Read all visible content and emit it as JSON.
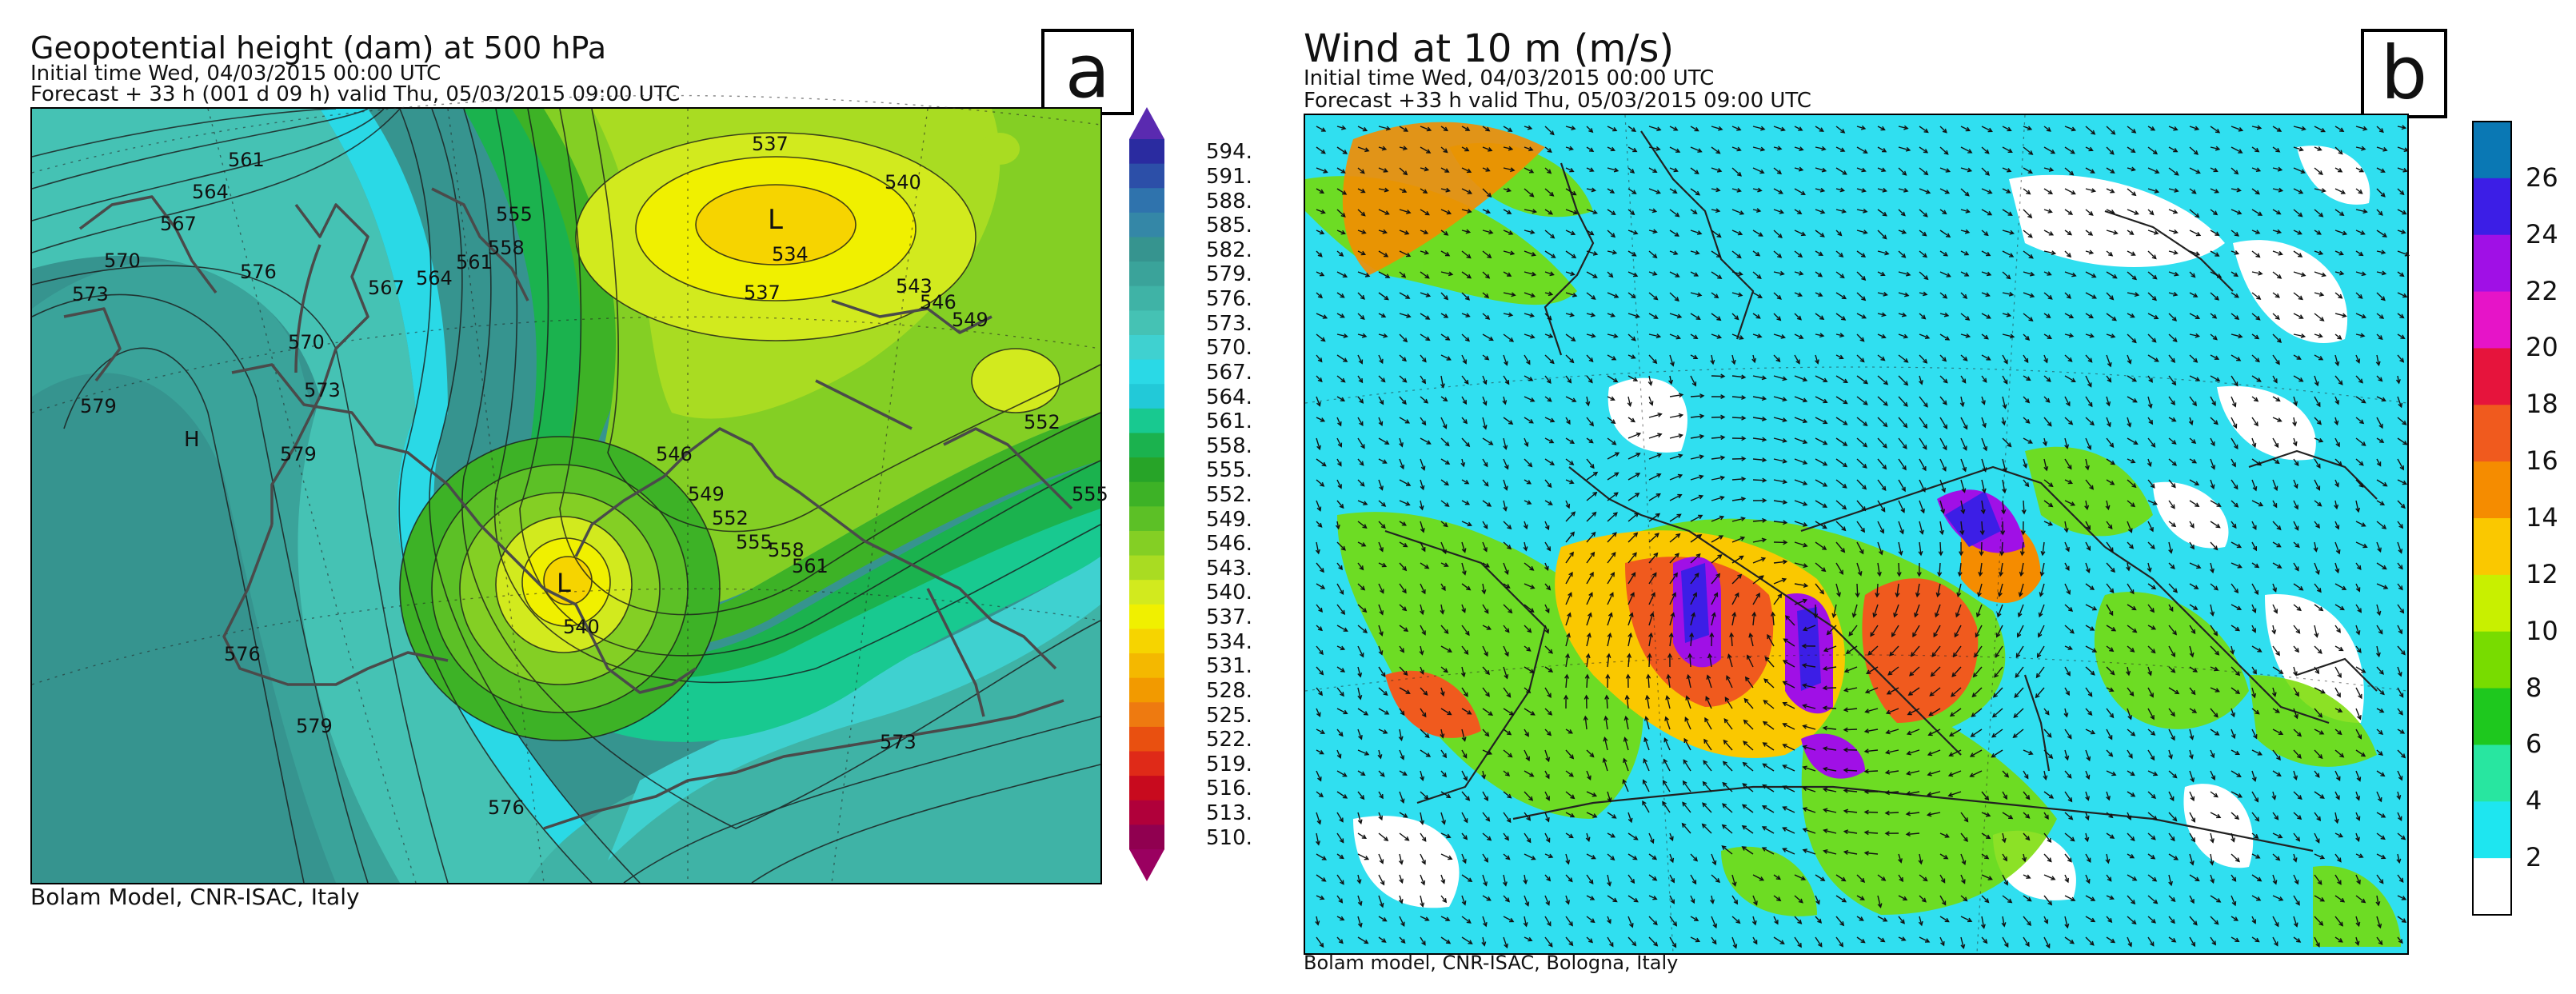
{
  "panel_a": {
    "title": "Geopotential height (dam) at 500 hPa",
    "initial_time": "Initial time  Wed, 04/03/2015  00:00 UTC",
    "forecast": "Forecast  +  33 h  (001 d 09 h)  valid Thu, 05/03/2015 09:00 UTC",
    "letter": "a",
    "credit": "Bolam Model, CNR-ISAC, Italy",
    "colorbar_labels": [
      "594.",
      "591.",
      "588.",
      "585.",
      "582.",
      "579.",
      "576.",
      "573.",
      "570.",
      "567.",
      "564.",
      "561.",
      "558.",
      "555.",
      "552.",
      "549.",
      "546.",
      "543.",
      "540.",
      "537.",
      "534.",
      "531.",
      "528.",
      "525.",
      "522.",
      "519.",
      "516.",
      "513.",
      "510."
    ],
    "colorbar_colors": [
      "#2a2ba0",
      "#2c4fa8",
      "#2f73ad",
      "#3487a7",
      "#36948f",
      "#3aa39a",
      "#3fb3a6",
      "#45c2b4",
      "#3fd1d0",
      "#2ad9e6",
      "#22c9d8",
      "#18c990",
      "#1bb24e",
      "#27a428",
      "#3db226",
      "#5cc026",
      "#84cf24",
      "#a9dc22",
      "#d2ea1e",
      "#f0f000",
      "#f6d400",
      "#f4b800",
      "#f29a00",
      "#ee7a10",
      "#e95010",
      "#df2a18",
      "#c80a1e",
      "#b0003a",
      "#900050"
    ],
    "contour_labels": [
      {
        "text": "561"
      },
      {
        "text": "564"
      },
      {
        "text": "567"
      },
      {
        "text": "570"
      },
      {
        "text": "573"
      },
      {
        "text": "576"
      },
      {
        "text": "579"
      },
      {
        "text": "537"
      },
      {
        "text": "540"
      },
      {
        "text": "534"
      },
      {
        "text": "537"
      },
      {
        "text": "543"
      },
      {
        "text": "546"
      },
      {
        "text": "549"
      },
      {
        "text": "552"
      },
      {
        "text": "555"
      },
      {
        "text": "546"
      },
      {
        "text": "549"
      },
      {
        "text": "552"
      },
      {
        "text": "555"
      },
      {
        "text": "558"
      },
      {
        "text": "561"
      },
      {
        "text": "540"
      },
      {
        "text": "L"
      },
      {
        "text": "L"
      },
      {
        "text": "H"
      },
      {
        "text": "576"
      },
      {
        "text": "579"
      },
      {
        "text": "573"
      },
      {
        "text": "576"
      },
      {
        "text": "579"
      },
      {
        "text": "567"
      },
      {
        "text": "564"
      },
      {
        "text": "561"
      },
      {
        "text": "558"
      },
      {
        "text": "555"
      },
      {
        "text": "570"
      },
      {
        "text": "573"
      }
    ]
  },
  "panel_b": {
    "title": "Wind at 10 m (m/s)",
    "initial_time": "Initial time  Wed, 04/03/2015 00:00 UTC",
    "forecast": "Forecast +33 h valid  Thu, 05/03/2015 09:00 UTC",
    "letter": "b",
    "credit": "Bolam model, CNR-ISAC, Bologna, Italy",
    "colorbar_labels": [
      "26",
      "24",
      "22",
      "20",
      "18",
      "16",
      "14",
      "12",
      "10",
      "8",
      "6",
      "4",
      "2"
    ],
    "colorbar_colors": [
      "#0a78b4",
      "#3c1ee6",
      "#a010e6",
      "#e614c8",
      "#e6143c",
      "#f05a1e",
      "#f58c00",
      "#fac800",
      "#c8f000",
      "#78dc00",
      "#1ec81e",
      "#28e6a0",
      "#1ee6f0",
      "#ffffff"
    ]
  }
}
